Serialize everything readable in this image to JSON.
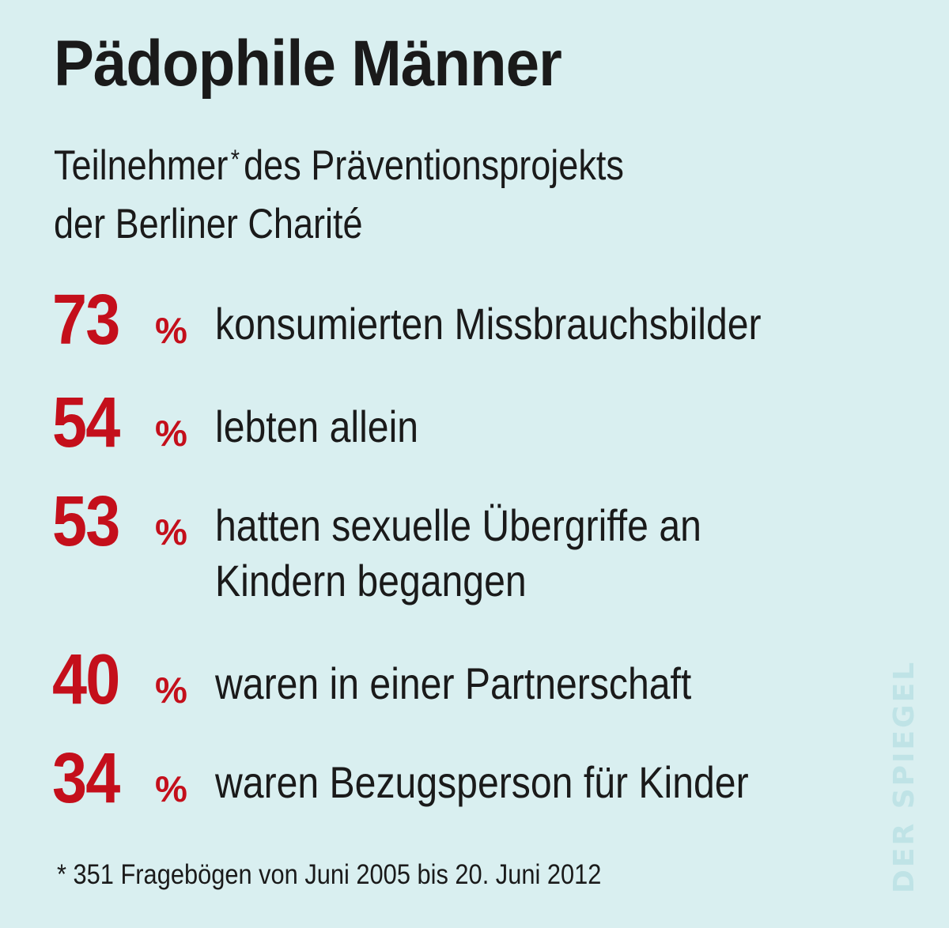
{
  "title": "Pädophile Männer",
  "subtitle": {
    "line1_part1": "Teilnehmer",
    "marker": "*",
    "line1_part2": "des Präventionsprojekts",
    "line2": "der Berliner Charité"
  },
  "stats": [
    {
      "value": "73",
      "unit": "%",
      "lines": [
        "konsumierten Missbrauchsbilder"
      ]
    },
    {
      "value": "54",
      "unit": "%",
      "lines": [
        "lebten allein"
      ]
    },
    {
      "value": "53",
      "unit": "%",
      "lines": [
        "hatten sexuelle Übergriffe an",
        "Kindern begangen"
      ]
    },
    {
      "value": "40",
      "unit": "%",
      "lines": [
        "waren in einer Partnerschaft"
      ]
    },
    {
      "value": "34",
      "unit": "%",
      "lines": [
        "waren Bezugsperson für Kinder"
      ]
    }
  ],
  "footnote": "* 351 Fragebögen von Juni 2005 bis 20. Juni 2012",
  "logo": "DER SPIEGEL",
  "colors": {
    "background": "#d9eff0",
    "accent": "#c40f1b",
    "text": "#1a1a1a"
  }
}
